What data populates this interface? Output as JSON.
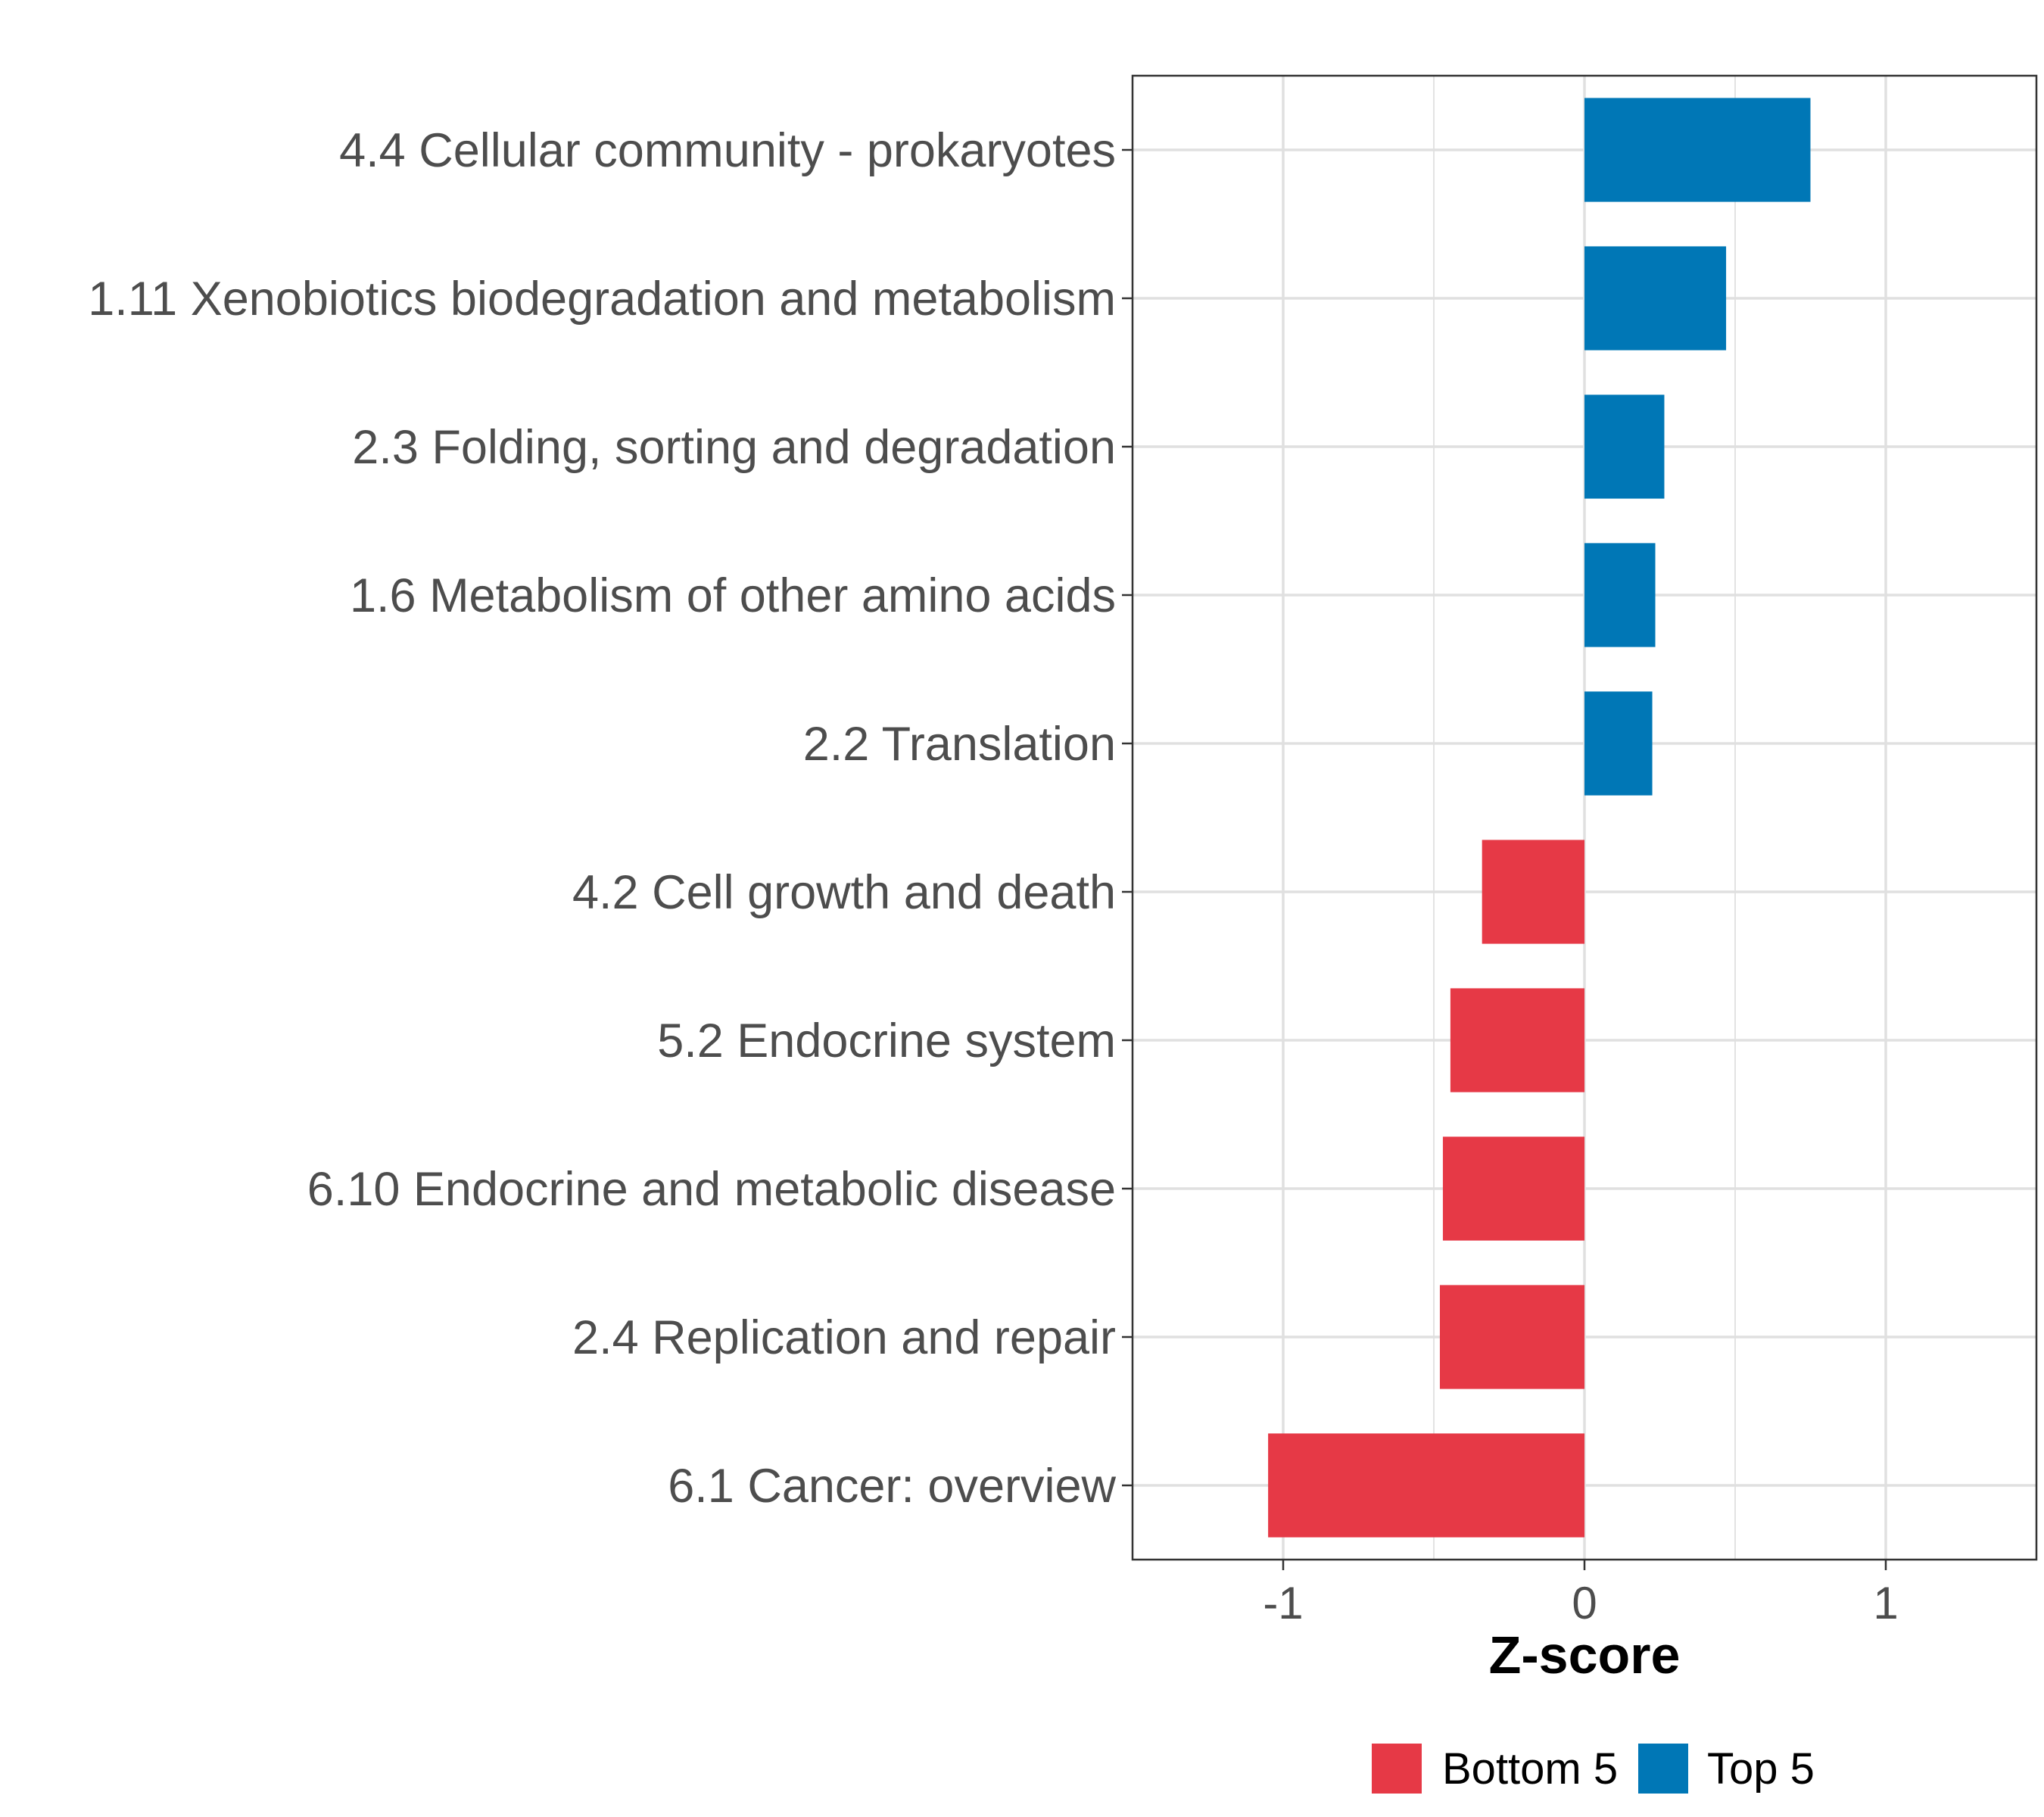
{
  "chart_data": {
    "type": "bar",
    "orientation": "horizontal",
    "xlabel": "Z-score",
    "xlim": [
      -1.5,
      1.5
    ],
    "xticks": [
      -1,
      0,
      1
    ],
    "xtick_labels": [
      "-1",
      "0",
      "1"
    ],
    "grid": true,
    "legend_position": "bottom",
    "colors": {
      "Bottom 5": "#e63946",
      "Top 5": "#0077b6"
    },
    "legend": [
      {
        "label": "Bottom 5",
        "color": "#e63946"
      },
      {
        "label": "Top 5",
        "color": "#0077b6"
      }
    ],
    "categories": [
      "4.4 Cellular community - prokaryotes",
      "1.11 Xenobiotics biodegradation and metabolism",
      "2.3 Folding, sorting and degradation",
      "1.6 Metabolism of other amino acids",
      "2.2 Translation",
      "4.2 Cell growth and death",
      "5.2 Endocrine system",
      "6.10 Endocrine and metabolic disease",
      "2.4 Replication and repair",
      "6.1 Cancer: overview"
    ],
    "values": [
      0.75,
      0.47,
      0.265,
      0.235,
      0.225,
      -0.34,
      -0.445,
      -0.47,
      -0.48,
      -1.05
    ],
    "groups": [
      "Top 5",
      "Top 5",
      "Top 5",
      "Top 5",
      "Top 5",
      "Bottom 5",
      "Bottom 5",
      "Bottom 5",
      "Bottom 5",
      "Bottom 5"
    ]
  }
}
